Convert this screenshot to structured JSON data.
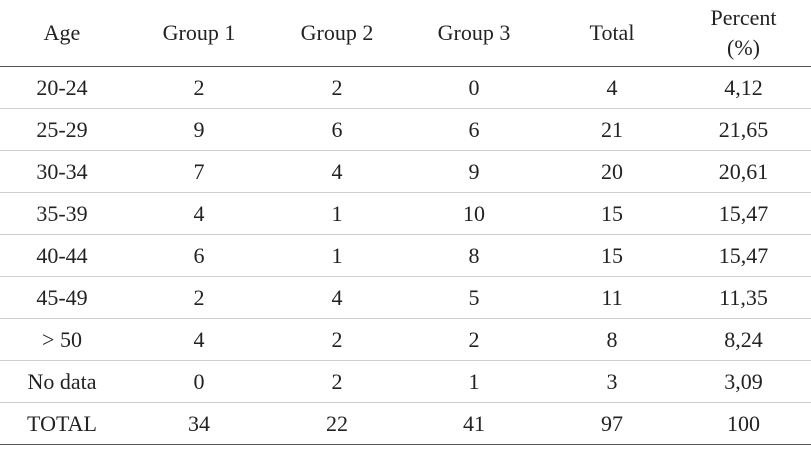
{
  "table": {
    "header": [
      "Age",
      "Group 1",
      "Group 2",
      "Group 3",
      "Total",
      "Percent (%)"
    ],
    "rows": [
      [
        "20-24",
        "2",
        "2",
        "0",
        "4",
        "4,12"
      ],
      [
        "25-29",
        "9",
        "6",
        "6",
        "21",
        "21,65"
      ],
      [
        "30-34",
        "7",
        "4",
        "9",
        "20",
        "20,61"
      ],
      [
        "35-39",
        "4",
        "1",
        "10",
        "15",
        "15,47"
      ],
      [
        "40-44",
        "6",
        "1",
        "8",
        "15",
        "15,47"
      ],
      [
        "45-49",
        "2",
        "4",
        "5",
        "11",
        "11,35"
      ],
      [
        "> 50",
        "4",
        "2",
        "2",
        "8",
        "8,24"
      ],
      [
        "No data",
        "0",
        "2",
        "1",
        "3",
        "3,09"
      ],
      [
        "TOTAL",
        "34",
        "22",
        "41",
        "97",
        "100"
      ]
    ]
  }
}
